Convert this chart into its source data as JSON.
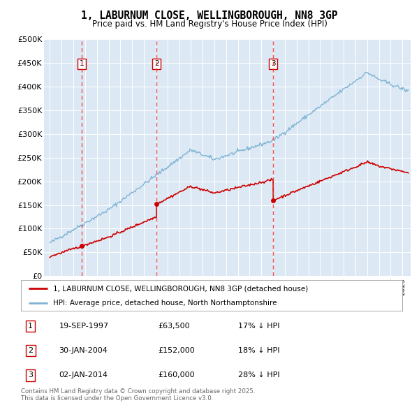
{
  "title": "1, LABURNUM CLOSE, WELLINGBOROUGH, NN8 3GP",
  "subtitle": "Price paid vs. HM Land Registry's House Price Index (HPI)",
  "legend_line1": "1, LABURNUM CLOSE, WELLINGBOROUGH, NN8 3GP (detached house)",
  "legend_line2": "HPI: Average price, detached house, North Northamptonshire",
  "footnote": "Contains HM Land Registry data © Crown copyright and database right 2025.\nThis data is licensed under the Open Government Licence v3.0.",
  "transactions": [
    {
      "num": 1,
      "date": "19-SEP-1997",
      "price": 63500,
      "hpi_diff": "17% ↓ HPI",
      "year": 1997.72
    },
    {
      "num": 2,
      "date": "30-JAN-2004",
      "price": 152000,
      "hpi_diff": "18% ↓ HPI",
      "year": 2004.08
    },
    {
      "num": 3,
      "date": "02-JAN-2014",
      "price": 160000,
      "hpi_diff": "28% ↓ HPI",
      "year": 2014.01
    }
  ],
  "red_line_color": "#cc0000",
  "blue_line_color": "#7fb3d3",
  "vline_color": "#ee3333",
  "plot_bg_color": "#dce9f5",
  "ylim": [
    0,
    500000
  ],
  "xlim_start": 1994.5,
  "xlim_end": 2025.7,
  "yticks": [
    0,
    50000,
    100000,
    150000,
    200000,
    250000,
    300000,
    350000,
    400000,
    450000,
    500000
  ],
  "ytick_labels": [
    "£0",
    "£50K",
    "£100K",
    "£150K",
    "£200K",
    "£250K",
    "£300K",
    "£350K",
    "£400K",
    "£450K",
    "£500K"
  ]
}
